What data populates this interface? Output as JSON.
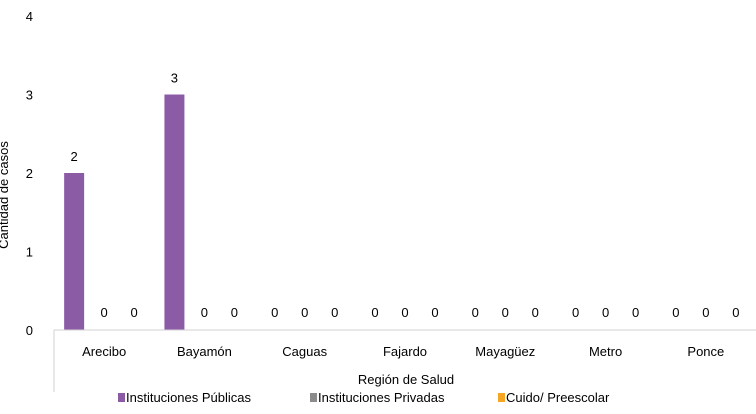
{
  "chart_data": {
    "type": "bar",
    "title": "",
    "xlabel": "Región de Salud",
    "ylabel": "Cantidad de casos",
    "ylim": [
      0,
      4
    ],
    "yticks": [
      0,
      1,
      2,
      3,
      4
    ],
    "grid": false,
    "legend_position": "bottom",
    "categories": [
      "Arecibo",
      "Bayamón",
      "Caguas",
      "Fajardo",
      "Mayagüez",
      "Metro",
      "Ponce"
    ],
    "series": [
      {
        "name": "Instituciones Públicas",
        "color": "#8B5CA5",
        "values": [
          2,
          3,
          0,
          0,
          0,
          0,
          0
        ]
      },
      {
        "name": "Instituciones Privadas",
        "color": "#8C8C8C",
        "values": [
          0,
          0,
          0,
          0,
          0,
          0,
          0
        ]
      },
      {
        "name": "Cuido/ Preescolar",
        "color": "#F5A623",
        "values": [
          0,
          0,
          0,
          0,
          0,
          0,
          0
        ]
      }
    ],
    "data_labels": true
  }
}
